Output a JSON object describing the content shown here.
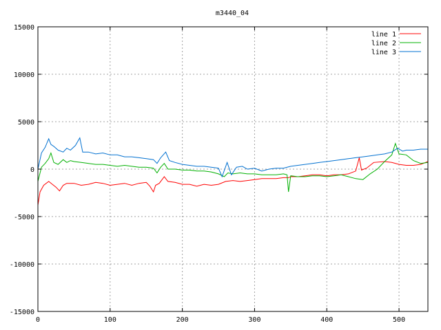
{
  "chart_data": {
    "type": "line",
    "title": "m3440_04",
    "xlabel": "",
    "ylabel": "",
    "xlim": [
      0,
      540
    ],
    "ylim": [
      -15000,
      15000
    ],
    "x_ticks": [
      0,
      100,
      200,
      300,
      400,
      500
    ],
    "y_ticks": [
      -15000,
      -10000,
      -5000,
      0,
      5000,
      10000,
      15000
    ],
    "grid": true,
    "legend_position": "top-right",
    "series": [
      {
        "name": "line 1",
        "color": "#ff0000",
        "x": [
          0,
          3,
          8,
          15,
          20,
          25,
          30,
          35,
          40,
          50,
          60,
          70,
          80,
          90,
          100,
          110,
          120,
          130,
          140,
          150,
          155,
          160,
          163,
          168,
          175,
          180,
          190,
          200,
          210,
          220,
          230,
          240,
          250,
          260,
          270,
          280,
          290,
          300,
          310,
          320,
          330,
          340,
          347,
          350,
          360,
          370,
          380,
          390,
          400,
          410,
          420,
          430,
          440,
          445,
          448,
          455,
          465,
          480,
          490,
          500,
          510,
          520,
          530,
          540
        ],
        "y": [
          -3800,
          -2400,
          -1700,
          -1300,
          -1600,
          -1900,
          -2300,
          -1700,
          -1500,
          -1500,
          -1700,
          -1600,
          -1400,
          -1500,
          -1700,
          -1600,
          -1500,
          -1700,
          -1500,
          -1400,
          -1800,
          -2400,
          -1700,
          -1500,
          -800,
          -1300,
          -1400,
          -1600,
          -1600,
          -1800,
          -1600,
          -1700,
          -1600,
          -1300,
          -1200,
          -1300,
          -1200,
          -1100,
          -1000,
          -1000,
          -1000,
          -900,
          -900,
          -800,
          -800,
          -700,
          -600,
          -600,
          -700,
          -600,
          -600,
          -500,
          -200,
          1200,
          -100,
          100,
          700,
          800,
          700,
          500,
          400,
          400,
          500,
          800
        ]
      },
      {
        "name": "line 2",
        "color": "#00b000",
        "x": [
          0,
          5,
          10,
          15,
          18,
          22,
          28,
          35,
          40,
          45,
          50,
          60,
          70,
          80,
          90,
          100,
          110,
          120,
          130,
          140,
          150,
          160,
          165,
          170,
          175,
          180,
          190,
          200,
          210,
          220,
          230,
          240,
          250,
          258,
          263,
          270,
          280,
          290,
          300,
          310,
          320,
          330,
          340,
          345,
          347,
          350,
          360,
          370,
          380,
          390,
          400,
          410,
          420,
          430,
          440,
          450,
          460,
          470,
          480,
          490,
          495,
          500,
          510,
          520,
          530,
          540
        ],
        "y": [
          -1300,
          200,
          600,
          1100,
          1700,
          700,
          500,
          1000,
          700,
          900,
          800,
          700,
          600,
          500,
          500,
          400,
          300,
          400,
          300,
          200,
          200,
          100,
          -400,
          200,
          600,
          0,
          0,
          -100,
          -100,
          -200,
          -200,
          -300,
          -500,
          -800,
          -400,
          -500,
          -400,
          -500,
          -500,
          -600,
          -600,
          -600,
          -500,
          -600,
          -2400,
          -700,
          -800,
          -800,
          -700,
          -700,
          -800,
          -700,
          -600,
          -800,
          -1000,
          -1100,
          -500,
          0,
          800,
          1500,
          2700,
          1600,
          1500,
          900,
          600,
          700
        ]
      },
      {
        "name": "line 3",
        "color": "#0070d0",
        "x": [
          0,
          5,
          10,
          15,
          18,
          22,
          28,
          35,
          40,
          45,
          52,
          58,
          62,
          70,
          80,
          90,
          100,
          110,
          120,
          130,
          140,
          150,
          160,
          165,
          170,
          177,
          182,
          190,
          200,
          210,
          220,
          230,
          240,
          250,
          255,
          262,
          268,
          275,
          283,
          290,
          300,
          310,
          320,
          330,
          340,
          350,
          360,
          370,
          380,
          390,
          400,
          410,
          420,
          430,
          440,
          450,
          460,
          470,
          480,
          490,
          498,
          505,
          510,
          520,
          530,
          540
        ],
        "y": [
          0,
          1700,
          2300,
          3200,
          2600,
          2400,
          2000,
          1800,
          2200,
          2000,
          2500,
          3300,
          1800,
          1800,
          1600,
          1700,
          1500,
          1500,
          1300,
          1300,
          1200,
          1100,
          1000,
          600,
          1200,
          1800,
          900,
          700,
          500,
          400,
          300,
          300,
          200,
          100,
          -800,
          700,
          -600,
          200,
          300,
          0,
          100,
          -200,
          0,
          100,
          100,
          300,
          400,
          500,
          600,
          700,
          800,
          900,
          1000,
          1100,
          1200,
          1300,
          1400,
          1500,
          1600,
          1800,
          2200,
          1900,
          2000,
          2000,
          2100,
          2100
        ]
      }
    ]
  }
}
